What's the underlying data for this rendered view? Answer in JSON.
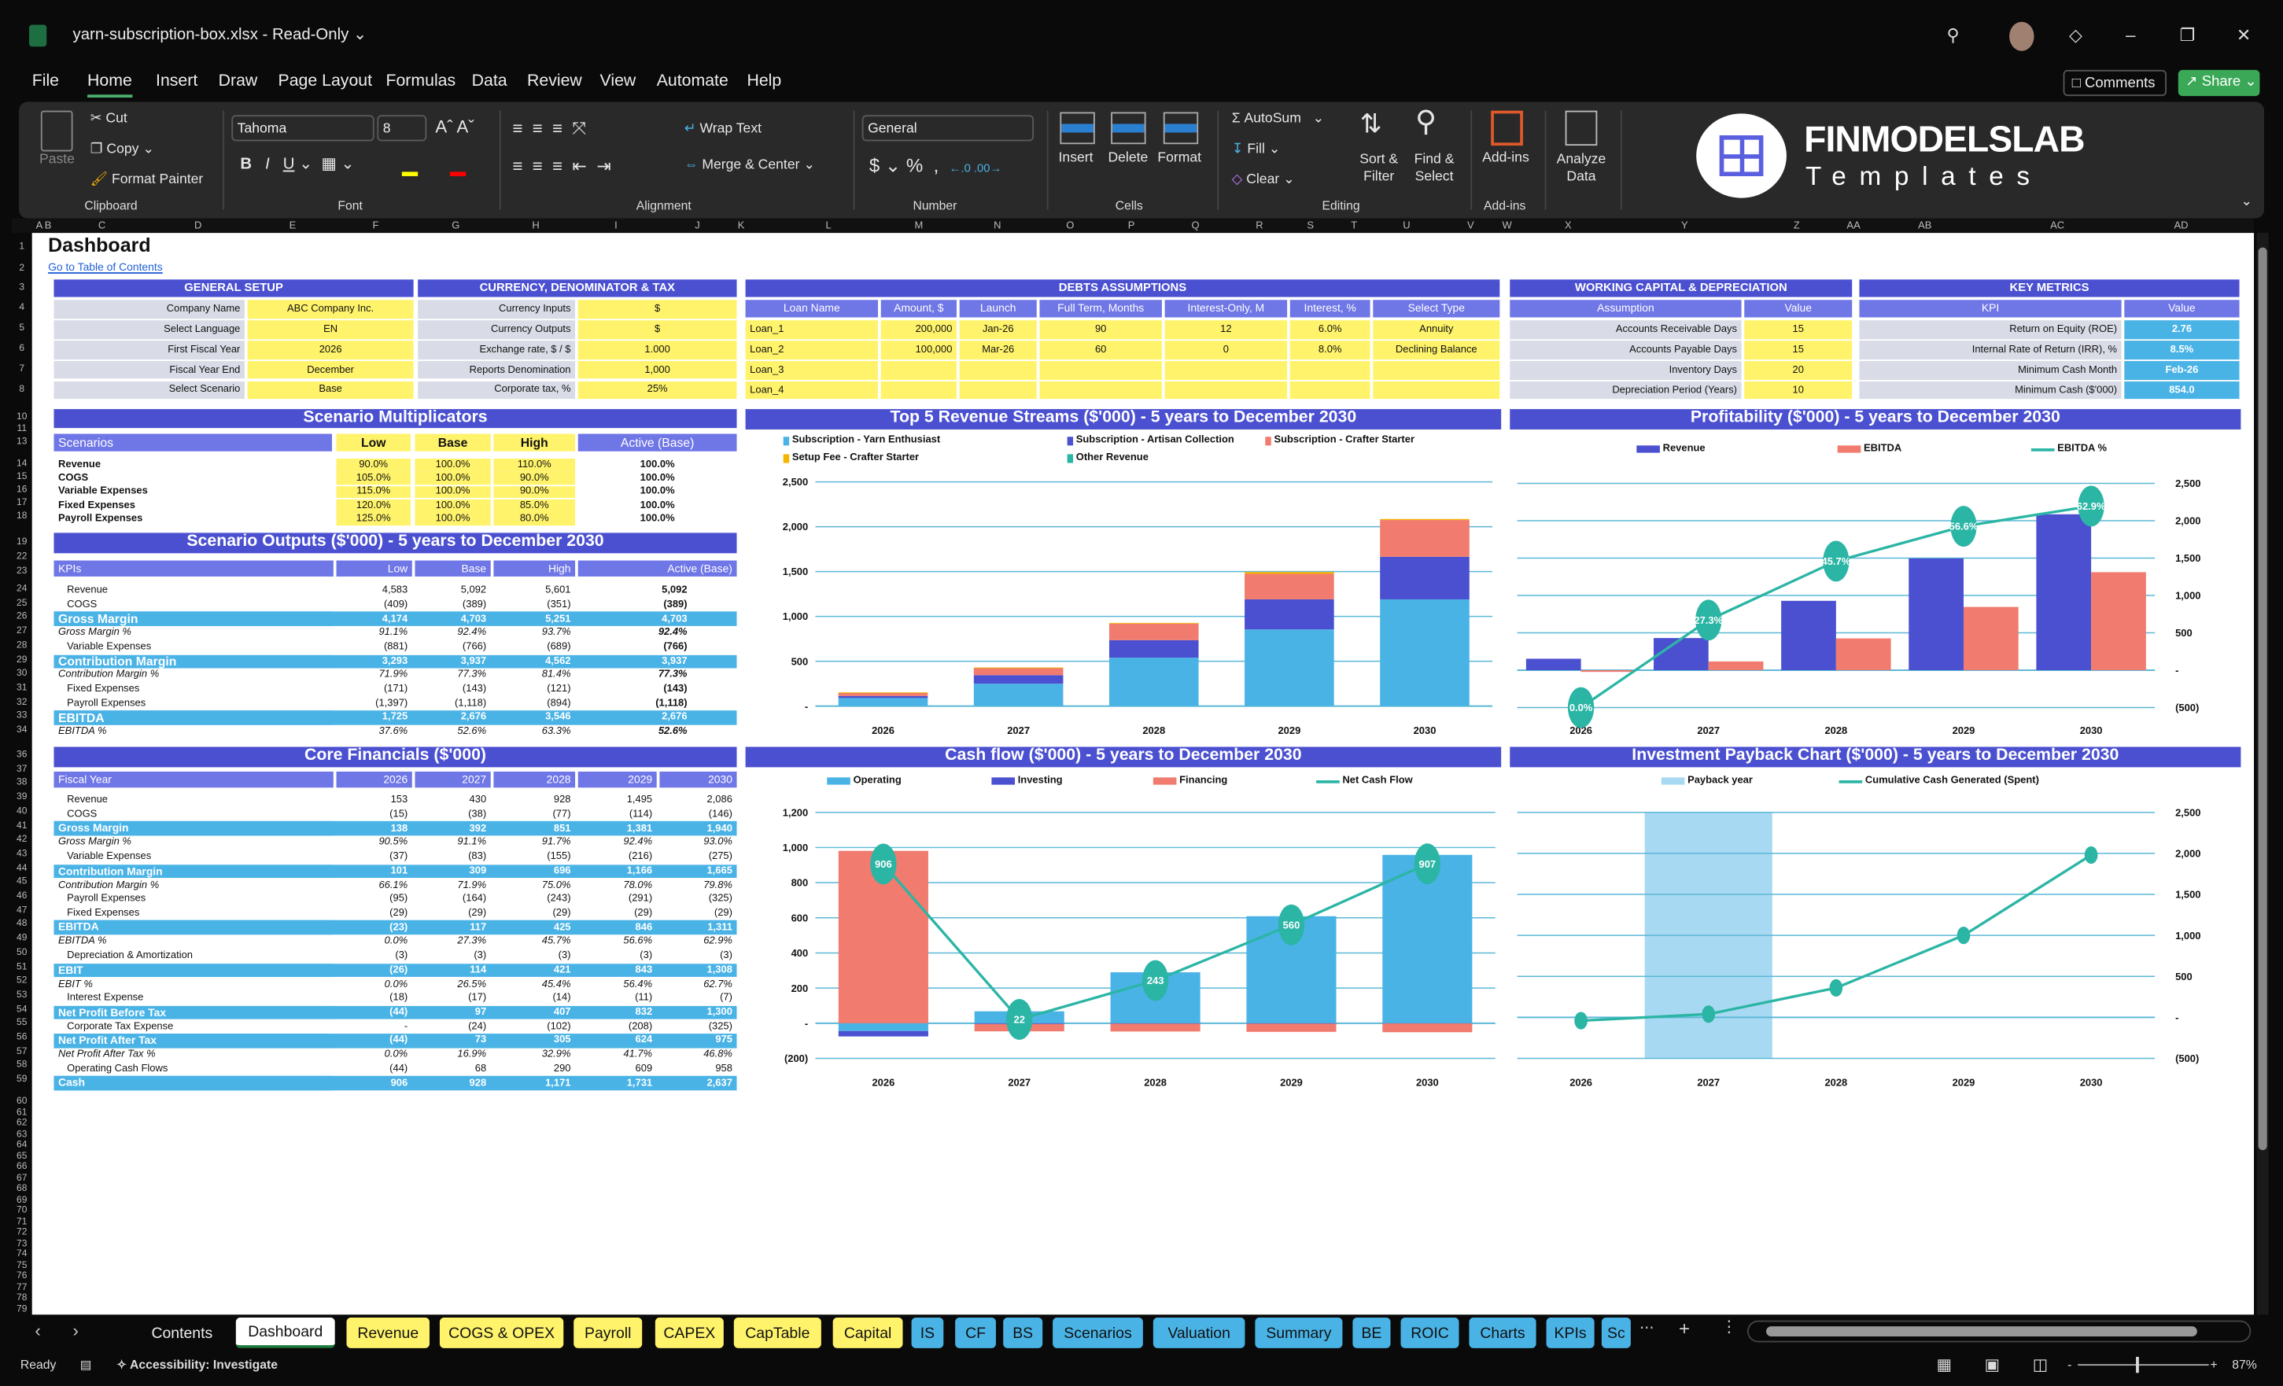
{
  "window": {
    "title": "yarn-subscription-box.xlsx  -  Read-Only ⌄",
    "comments": "Comments",
    "share": "Share ⌄"
  },
  "menu": [
    "File",
    "Home",
    "Insert",
    "Draw",
    "Page Layout",
    "Formulas",
    "Data",
    "Review",
    "View",
    "Automate",
    "Help"
  ],
  "ribbon": {
    "paste": "Paste",
    "cut": "Cut",
    "copy": "Copy",
    "format_painter": "Format Painter",
    "font_name": "Tahoma",
    "font_size": "8",
    "wrap_text": "Wrap Text",
    "merge_center": "Merge & Center",
    "number_format": "General",
    "insert": "Insert",
    "delete": "Delete",
    "format": "Format",
    "autosum": "AutoSum",
    "fill": "Fill",
    "clear": "Clear",
    "sort_filter": "Sort & Filter",
    "find_select": "Find & Select",
    "addins": "Add-ins",
    "analyze": "Analyze Data",
    "groups": [
      "Clipboard",
      "Font",
      "Alignment",
      "Number",
      "Cells",
      "Editing",
      "Add-ins"
    ],
    "logo_top": "FINMODELSLAB",
    "logo_bottom": "Templates"
  },
  "columns": [
    "A",
    "B",
    "C",
    "D",
    "E",
    "F",
    "G",
    "H",
    "I",
    "J",
    "K",
    "L",
    "M",
    "N",
    "O",
    "P",
    "Q",
    "R",
    "S",
    "T",
    "U",
    "V",
    "W",
    "X",
    "Y",
    "Z",
    "AA",
    "AB",
    "AC",
    "AD"
  ],
  "rows": [
    1,
    2,
    3,
    4,
    5,
    6,
    7,
    8,
    10,
    11,
    13,
    14,
    15,
    16,
    17,
    18,
    19,
    22,
    23,
    24,
    25,
    26,
    27,
    28,
    29,
    30,
    31,
    32,
    33,
    34,
    36,
    37,
    38,
    39,
    40,
    41,
    42,
    43,
    44,
    45,
    46,
    47,
    48,
    49,
    50,
    51,
    52,
    53,
    54,
    55,
    56,
    57,
    58,
    59,
    60,
    61,
    62,
    63,
    64,
    65,
    66,
    67,
    68,
    69,
    70,
    71,
    72,
    73,
    74,
    75,
    76,
    77,
    78,
    79
  ],
  "sheet": {
    "title": "Dashboard",
    "toc_link": "Go to Table of Contents"
  },
  "general_setup": {
    "title": "GENERAL SETUP",
    "rows": [
      {
        "label": "Company Name",
        "value": "ABC Company Inc."
      },
      {
        "label": "Select Language",
        "value": "EN"
      },
      {
        "label": "First Fiscal Year",
        "value": "2026"
      },
      {
        "label": "Fiscal Year End",
        "value": "December"
      },
      {
        "label": "Select Scenario",
        "value": "Base"
      }
    ]
  },
  "currency": {
    "title": "CURRENCY, DENOMINATOR & TAX",
    "rows": [
      {
        "label": "Currency Inputs",
        "value": "$"
      },
      {
        "label": "Currency Outputs",
        "value": "$"
      },
      {
        "label": "Exchange rate, $ / $",
        "value": "1.000"
      },
      {
        "label": "Reports Denomination",
        "value": "1,000"
      },
      {
        "label": "Corporate tax, %",
        "value": "25%"
      }
    ]
  },
  "debts": {
    "title": "DEBTS ASSUMPTIONS",
    "columns": [
      "Loan Name",
      "Amount, $",
      "Launch",
      "Full Term, Months",
      "Interest-Only, M",
      "Interest, %",
      "Select Type"
    ],
    "rows": [
      [
        "Loan_1",
        "200,000",
        "Jan-26",
        "90",
        "12",
        "6.0%",
        "Annuity"
      ],
      [
        "Loan_2",
        "100,000",
        "Mar-26",
        "60",
        "0",
        "8.0%",
        "Declining Balance"
      ],
      [
        "Loan_3",
        "",
        "",
        "",
        "",
        "",
        ""
      ],
      [
        "Loan_4",
        "",
        "",
        "",
        "",
        "",
        ""
      ]
    ]
  },
  "working_capital": {
    "title": "WORKING CAPITAL & DEPRECIATION",
    "columns": [
      "Assumption",
      "Value"
    ],
    "rows": [
      {
        "label": "Accounts Receivable Days",
        "value": "15"
      },
      {
        "label": "Accounts Payable Days",
        "value": "15"
      },
      {
        "label": "Inventory Days",
        "value": "20"
      },
      {
        "label": "Depreciation Period (Years)",
        "value": "10"
      }
    ]
  },
  "key_metrics": {
    "title": "KEY METRICS",
    "columns": [
      "KPI",
      "Value"
    ],
    "rows": [
      {
        "label": "Return on Equity (ROE)",
        "value": "2.76"
      },
      {
        "label": "Internal Rate of Return (IRR), %",
        "value": "8.5%"
      },
      {
        "label": "Minimum Cash Month",
        "value": "Feb-26"
      },
      {
        "label": "Minimum Cash ($'000)",
        "value": "854.0"
      }
    ]
  },
  "scenario_multiplicators": {
    "title": "Scenario Multiplicators",
    "columns": [
      "Scenarios",
      "Low",
      "Base",
      "High",
      "Active (Base)"
    ],
    "rows": [
      {
        "label": "Revenue",
        "values": [
          "90.0%",
          "100.0%",
          "110.0%",
          "100.0%"
        ]
      },
      {
        "label": "COGS",
        "values": [
          "105.0%",
          "100.0%",
          "90.0%",
          "100.0%"
        ]
      },
      {
        "label": "Variable Expenses",
        "values": [
          "115.0%",
          "100.0%",
          "90.0%",
          "100.0%"
        ]
      },
      {
        "label": "Fixed Expenses",
        "values": [
          "120.0%",
          "100.0%",
          "85.0%",
          "100.0%"
        ]
      },
      {
        "label": "Payroll Expenses",
        "values": [
          "125.0%",
          "100.0%",
          "80.0%",
          "100.0%"
        ]
      }
    ]
  },
  "scenario_outputs": {
    "title": "Scenario Outputs ($'000) - 5 years to December 2030",
    "columns": [
      "KPIs",
      "Low",
      "Base",
      "High",
      "Active (Base)"
    ],
    "rows": [
      {
        "label": "Revenue",
        "type": "line",
        "values": [
          "4,583",
          "5,092",
          "5,601",
          "5,092"
        ]
      },
      {
        "label": "COGS",
        "type": "line",
        "values": [
          "(409)",
          "(389)",
          "(351)",
          "(389)"
        ]
      },
      {
        "label": "Gross Margin",
        "type": "subtotal",
        "values": [
          "4,174",
          "4,703",
          "5,251",
          "4,703"
        ]
      },
      {
        "label": "Gross Margin %",
        "type": "percent",
        "values": [
          "91.1%",
          "92.4%",
          "93.7%",
          "92.4%"
        ]
      },
      {
        "label": "Variable Expenses",
        "type": "line",
        "values": [
          "(881)",
          "(766)",
          "(689)",
          "(766)"
        ]
      },
      {
        "label": "Contribution Margin",
        "type": "subtotal",
        "values": [
          "3,293",
          "3,937",
          "4,562",
          "3,937"
        ]
      },
      {
        "label": "Contribution Margin %",
        "type": "percent",
        "values": [
          "71.9%",
          "77.3%",
          "81.4%",
          "77.3%"
        ]
      },
      {
        "label": "Fixed Expenses",
        "type": "line",
        "values": [
          "(171)",
          "(143)",
          "(121)",
          "(143)"
        ]
      },
      {
        "label": "Payroll Expenses",
        "type": "line",
        "values": [
          "(1,397)",
          "(1,118)",
          "(894)",
          "(1,118)"
        ]
      },
      {
        "label": "EBITDA",
        "type": "subtotal",
        "values": [
          "1,725",
          "2,676",
          "3,546",
          "2,676"
        ]
      },
      {
        "label": "EBITDA %",
        "type": "percent",
        "values": [
          "37.6%",
          "52.6%",
          "63.3%",
          "52.6%"
        ]
      }
    ]
  },
  "core_financials": {
    "title": "Core Financials ($'000)",
    "columns": [
      "Fiscal Year",
      "2026",
      "2027",
      "2028",
      "2029",
      "2030"
    ],
    "rows": [
      {
        "label": "Revenue",
        "type": "line",
        "values": [
          "153",
          "430",
          "928",
          "1,495",
          "2,086"
        ]
      },
      {
        "label": "COGS",
        "type": "line",
        "values": [
          "(15)",
          "(38)",
          "(77)",
          "(114)",
          "(146)"
        ]
      },
      {
        "label": "Gross Margin",
        "type": "subtotal",
        "values": [
          "138",
          "392",
          "851",
          "1,381",
          "1,940"
        ]
      },
      {
        "label": "Gross Margin %",
        "type": "percent",
        "values": [
          "90.5%",
          "91.1%",
          "91.7%",
          "92.4%",
          "93.0%"
        ]
      },
      {
        "label": "Variable Expenses",
        "type": "line",
        "values": [
          "(37)",
          "(83)",
          "(155)",
          "(216)",
          "(275)"
        ]
      },
      {
        "label": "Contribution Margin",
        "type": "subtotal",
        "values": [
          "101",
          "309",
          "696",
          "1,166",
          "1,665"
        ]
      },
      {
        "label": "Contribution Margin %",
        "type": "percent",
        "values": [
          "66.1%",
          "71.9%",
          "75.0%",
          "78.0%",
          "79.8%"
        ]
      },
      {
        "label": "Payroll Expenses",
        "type": "line",
        "values": [
          "(95)",
          "(164)",
          "(243)",
          "(291)",
          "(325)"
        ]
      },
      {
        "label": "Fixed Expenses",
        "type": "line",
        "values": [
          "(29)",
          "(29)",
          "(29)",
          "(29)",
          "(29)"
        ]
      },
      {
        "label": "EBITDA",
        "type": "subtotal",
        "values": [
          "(23)",
          "117",
          "425",
          "846",
          "1,311"
        ]
      },
      {
        "label": "EBITDA %",
        "type": "percent",
        "values": [
          "0.0%",
          "27.3%",
          "45.7%",
          "56.6%",
          "62.9%"
        ]
      },
      {
        "label": "Depreciation & Amortization",
        "type": "line",
        "values": [
          "(3)",
          "(3)",
          "(3)",
          "(3)",
          "(3)"
        ]
      },
      {
        "label": "EBIT",
        "type": "subtotal",
        "values": [
          "(26)",
          "114",
          "421",
          "843",
          "1,308"
        ]
      },
      {
        "label": "EBIT %",
        "type": "percent",
        "values": [
          "0.0%",
          "26.5%",
          "45.4%",
          "56.4%",
          "62.7%"
        ]
      },
      {
        "label": "Interest Expense",
        "type": "line",
        "values": [
          "(18)",
          "(17)",
          "(14)",
          "(11)",
          "(7)"
        ]
      },
      {
        "label": "Net Profit Before Tax",
        "type": "subtotal",
        "values": [
          "(44)",
          "97",
          "407",
          "832",
          "1,300"
        ]
      },
      {
        "label": "Corporate Tax Expense",
        "type": "line",
        "values": [
          "-",
          "(24)",
          "(102)",
          "(208)",
          "(325)"
        ]
      },
      {
        "label": "Net Profit After Tax",
        "type": "subtotal",
        "values": [
          "(44)",
          "73",
          "305",
          "624",
          "975"
        ]
      },
      {
        "label": "Net Profit After Tax %",
        "type": "percent",
        "values": [
          "0.0%",
          "16.9%",
          "32.9%",
          "41.7%",
          "46.8%"
        ]
      },
      {
        "label": "Operating Cash Flows",
        "type": "line",
        "values": [
          "(44)",
          "68",
          "290",
          "609",
          "958"
        ]
      },
      {
        "label": "Cash",
        "type": "subtotal",
        "values": [
          "906",
          "928",
          "1,171",
          "1,731",
          "2,637"
        ]
      }
    ]
  },
  "chart_data": [
    {
      "type": "bar",
      "stacked": true,
      "title": "Top 5 Revenue Streams ($'000) - 5 years to December 2030",
      "categories": [
        "2026",
        "2027",
        "2028",
        "2029",
        "2030"
      ],
      "ylim": [
        0,
        2500
      ],
      "yticks": [
        0,
        500,
        1000,
        1500,
        2000,
        2500
      ],
      "ytick_labels": [
        "-",
        "500",
        "1,000",
        "1,500",
        "2,000",
        "2,500"
      ],
      "y_axis": "left",
      "grid": true,
      "legend": "top",
      "series": [
        {
          "name": "Subscription - Yarn Enthusiast",
          "kind": "bar",
          "color": "#4ab3e6",
          "values": [
            90,
            250,
            540,
            855,
            1190
          ]
        },
        {
          "name": "Subscription - Artisan Collection",
          "kind": "bar",
          "color": "#4b50d0",
          "values": [
            22,
            95,
            195,
            335,
            475
          ]
        },
        {
          "name": "Subscription - Crafter Starter",
          "kind": "bar",
          "color": "#f07b6e",
          "values": [
            38,
            83,
            185,
            285,
            410
          ]
        },
        {
          "name": "Setup Fee - Crafter Starter",
          "kind": "bar",
          "color": "#f5b400",
          "values": [
            3,
            2,
            8,
            20,
            11
          ]
        },
        {
          "name": "Other Revenue",
          "kind": "bar",
          "color": "#2bb5a5",
          "values": [
            0,
            0,
            0,
            0,
            0
          ]
        }
      ]
    },
    {
      "type": "bar",
      "stacked": false,
      "title": "Profitability ($'000) - 5 years to December 2030",
      "categories": [
        "2026",
        "2027",
        "2028",
        "2029",
        "2030"
      ],
      "ylim": [
        -500,
        2500
      ],
      "yticks": [
        -500,
        0,
        500,
        1000,
        1500,
        2000,
        2500
      ],
      "ytick_labels": [
        "(500)",
        "-",
        "500",
        "1,000",
        "1,500",
        "2,000",
        "2,500"
      ],
      "y_axis": "right",
      "y2lim": [
        0,
        70
      ],
      "grid": true,
      "legend": "top",
      "series": [
        {
          "name": "Revenue",
          "kind": "bar",
          "color": "#4b50d0",
          "values": [
            153,
            430,
            928,
            1495,
            2086
          ]
        },
        {
          "name": "EBITDA",
          "kind": "bar",
          "color": "#f07b6e",
          "values": [
            -23,
            117,
            425,
            846,
            1311
          ]
        },
        {
          "name": "EBITDA %",
          "kind": "line",
          "axis": "secondary",
          "color": "#2bb5a5",
          "values": [
            0.0,
            27.3,
            45.7,
            56.6,
            62.9
          ],
          "labels": [
            "0.0%",
            "27.3%",
            "45.7%",
            "56.6%",
            "62.9%"
          ]
        }
      ]
    },
    {
      "type": "bar",
      "stacked": true,
      "title": "Cash flow ($'000) - 5 years to December 2030",
      "categories": [
        "2026",
        "2027",
        "2028",
        "2029",
        "2030"
      ],
      "ylim": [
        -200,
        1200
      ],
      "yticks": [
        -200,
        0,
        200,
        400,
        600,
        800,
        1000,
        1200
      ],
      "ytick_labels": [
        "(200)",
        "-",
        "200",
        "400",
        "600",
        "800",
        "1,000",
        "1,200"
      ],
      "y_axis": "left",
      "grid": true,
      "legend": "top",
      "series": [
        {
          "name": "Operating",
          "kind": "bar",
          "color": "#4ab3e6",
          "values": [
            -44,
            68,
            290,
            609,
            958
          ]
        },
        {
          "name": "Investing",
          "kind": "bar",
          "color": "#4b50d0",
          "values": [
            -31,
            -4,
            -2,
            -2,
            -1
          ]
        },
        {
          "name": "Financing",
          "kind": "bar",
          "color": "#f07b6e",
          "values": [
            981,
            -42,
            -45,
            -47,
            -50
          ]
        },
        {
          "name": "Net Cash Flow",
          "kind": "line",
          "color": "#2bb5a5",
          "values": [
            906,
            22,
            243,
            560,
            907
          ],
          "labels": [
            "906",
            "22",
            "243",
            "560",
            "907"
          ]
        }
      ]
    },
    {
      "type": "line",
      "title": "Investment Payback Chart ($'000) - 5 years to December 2030",
      "categories": [
        "2026",
        "2027",
        "2028",
        "2029",
        "2030"
      ],
      "ylim": [
        -500,
        2500
      ],
      "yticks": [
        -500,
        0,
        500,
        1000,
        1500,
        2000,
        2500
      ],
      "ytick_labels": [
        "(500)",
        "-",
        "500",
        "1,000",
        "1,500",
        "2,000",
        "2,500"
      ],
      "y_axis": "right",
      "grid": true,
      "legend": "top",
      "series": [
        {
          "name": "Payback year",
          "kind": "band",
          "color": "#a8d9f2",
          "values": [
            0,
            1,
            0,
            0,
            0
          ]
        },
        {
          "name": "Cumulative Cash Generated (Spent)",
          "kind": "line",
          "color": "#2bb5a5",
          "values": [
            -40,
            40,
            360,
            1000,
            1980
          ]
        }
      ]
    }
  ],
  "tabs": [
    {
      "label": "Contents",
      "color": ""
    },
    {
      "label": "Dashboard",
      "color": "#ffffff",
      "active": true
    },
    {
      "label": "Revenue",
      "color": "#fff36b"
    },
    {
      "label": "COGS & OPEX",
      "color": "#fff36b"
    },
    {
      "label": "Payroll",
      "color": "#fff36b"
    },
    {
      "label": "CAPEX",
      "color": "#fff36b"
    },
    {
      "label": "CapTable",
      "color": "#fff36b"
    },
    {
      "label": "Capital",
      "color": "#fff36b"
    },
    {
      "label": "IS",
      "color": "#4ab3e6"
    },
    {
      "label": "CF",
      "color": "#4ab3e6"
    },
    {
      "label": "BS",
      "color": "#4ab3e6"
    },
    {
      "label": "Scenarios",
      "color": "#4ab3e6"
    },
    {
      "label": "Valuation",
      "color": "#4ab3e6"
    },
    {
      "label": "Summary",
      "color": "#4ab3e6"
    },
    {
      "label": "BE",
      "color": "#4ab3e6"
    },
    {
      "label": "ROIC",
      "color": "#4ab3e6"
    },
    {
      "label": "Charts",
      "color": "#4ab3e6"
    },
    {
      "label": "KPIs",
      "color": "#4ab3e6"
    },
    {
      "label": "Sc",
      "color": "#4ab3e6"
    }
  ],
  "status": {
    "ready": "Ready",
    "accessibility": "Accessibility: Investigate",
    "zoom": "87%"
  }
}
